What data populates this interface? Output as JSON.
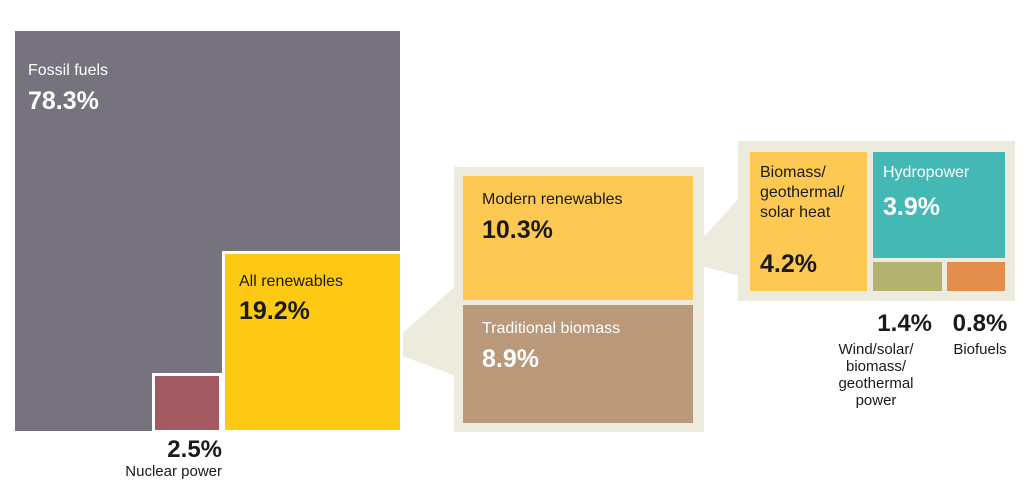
{
  "chart_data": {
    "type": "treemap",
    "title": "",
    "unit": "%",
    "segments": [
      {
        "name": "Fossil fuels",
        "value": 78.3,
        "value_label": "78.3%",
        "color": "#77737e"
      },
      {
        "name": "Nuclear power",
        "value": 2.5,
        "value_label": "2.5%",
        "color": "#a45a62"
      },
      {
        "name": "All renewables",
        "value": 19.2,
        "value_label": "19.2%",
        "color": "#fdc913"
      }
    ],
    "renewables_breakdown": [
      {
        "name": "Modern renewables",
        "value": 10.3,
        "value_label": "10.3%",
        "color": "#fdc953"
      },
      {
        "name": "Traditional biomass",
        "value": 8.9,
        "value_label": "8.9%",
        "color": "#b9997a"
      }
    ],
    "modern_renewables_breakdown": [
      {
        "name": "Biomass/ geothermal/ solar heat",
        "lines": [
          "Biomass/",
          "geothermal/",
          "solar heat"
        ],
        "value": 4.2,
        "value_label": "4.2%",
        "color": "#fdc953"
      },
      {
        "name": "Hydropower",
        "value": 3.9,
        "value_label": "3.9%",
        "color": "#44b8b4"
      },
      {
        "name": "Wind/solar/ biomass/ geothermal power",
        "lines": [
          "Wind/solar/",
          "biomass/",
          "geothermal",
          "power"
        ],
        "value": 1.4,
        "value_label": "1.4%",
        "color": "#b3b26f"
      },
      {
        "name": "Biofuels",
        "value": 0.8,
        "value_label": "0.8%",
        "color": "#e38d4d"
      }
    ]
  }
}
